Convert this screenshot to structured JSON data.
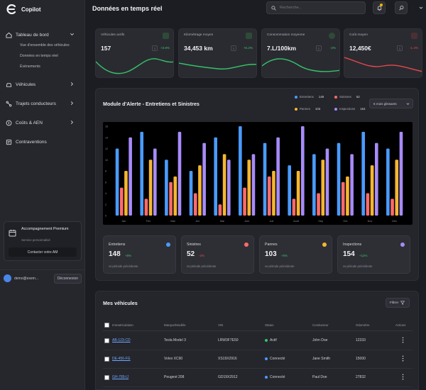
{
  "app": {
    "brand": "Copilot"
  },
  "header": {
    "title": "Données en temps réel",
    "search_placeholder": "Recherche..."
  },
  "sidebar": {
    "items": [
      {
        "label": "Tableau de bord",
        "icon": "home-icon"
      },
      {
        "label": "Véhicules",
        "icon": "car-icon"
      },
      {
        "label": "Trajets conducteurs",
        "icon": "route-icon"
      },
      {
        "label": "Coûts & AEN",
        "icon": "coin-icon"
      },
      {
        "label": "Contraventions",
        "icon": "ticket-icon"
      }
    ],
    "subitems": [
      "Vue d'ensemble des véhicules",
      "Données en temps réel",
      "Événements"
    ],
    "premium": {
      "title": "Accompagnement Premium",
      "subtitle": "Service personnalisé",
      "button": "Contacter votre AM"
    },
    "user": {
      "email": "demo@exem...",
      "logout": "Déconnexion"
    }
  },
  "kpis": [
    {
      "label": "Véhicules actifs",
      "value": "157",
      "trend": "+3.8%",
      "trend_color": "#35c46a",
      "accent": "#35c46a"
    },
    {
      "label": "Kilométrage moyen",
      "value": "34,453 km",
      "trend": "+5.2%",
      "trend_color": "#35c46a",
      "accent": "#35c46a"
    },
    {
      "label": "Consommation moyenne",
      "value": "7.L/100km",
      "trend": "-2%",
      "trend_color": "#35c46a",
      "accent": "#35c46a"
    },
    {
      "label": "Coût moyen",
      "value": "12,450€",
      "trend": "-1.4%",
      "trend_color": "#e5484d",
      "accent": "#e5484d"
    }
  ],
  "alert_module": {
    "title": "Module d'Alerte - Entretiens et Sinistres",
    "period": "6 mois glissants",
    "legend": [
      {
        "name": "Entretiens",
        "count": "148",
        "color": "#4a9bff"
      },
      {
        "name": "Sinistres",
        "count": "52",
        "color": "#ff6b6b"
      },
      {
        "name": "Pannes",
        "count": "103",
        "color": "#f5b730"
      },
      {
        "name": "Inspections",
        "count": "154",
        "color": "#a78bfa"
      }
    ],
    "stats": [
      {
        "label": "Entretiens",
        "value": "148",
        "trend": "+8%",
        "trend_color": "#35c46a",
        "sub": "vs période précédente",
        "color": "#4a9bff"
      },
      {
        "label": "Sinistres",
        "value": "52",
        "trend": "-3%",
        "trend_color": "#e5484d",
        "sub": "vs période précédente",
        "color": "#ff6b6b"
      },
      {
        "label": "Pannes",
        "value": "103",
        "trend": "+5%",
        "trend_color": "#35c46a",
        "sub": "vs période précédente",
        "color": "#f5b730"
      },
      {
        "label": "Inspections",
        "value": "154",
        "trend": "+12%",
        "trend_color": "#35c46a",
        "sub": "vs période précédente",
        "color": "#a78bfa"
      }
    ]
  },
  "chart_data": {
    "type": "bar",
    "categories": [
      "Jan",
      "Fév",
      "Mar",
      "Avr",
      "Mai",
      "Juin",
      "Juil",
      "Août",
      "Sep",
      "Oct",
      "Nov",
      "Déc"
    ],
    "ylim": [
      0,
      16
    ],
    "yticks": [
      "0",
      "2",
      "4",
      "6",
      "8",
      "10",
      "12",
      "14",
      "16"
    ],
    "series": [
      {
        "name": "Entretiens",
        "color": "#4a9bff",
        "values": [
          12,
          15,
          10,
          8,
          14,
          16,
          13,
          9,
          11,
          13,
          15,
          12
        ]
      },
      {
        "name": "Sinistres",
        "color": "#ff6b6b",
        "values": [
          5,
          3,
          6,
          4,
          2,
          5,
          7,
          3,
          4,
          6,
          4,
          3
        ]
      },
      {
        "name": "Pannes",
        "color": "#f5b730",
        "values": [
          8,
          10,
          7,
          9,
          11,
          10,
          8,
          8,
          10,
          7,
          9,
          10
        ]
      },
      {
        "name": "Inspections",
        "color": "#a78bfa",
        "values": [
          14,
          12,
          15,
          13,
          10,
          11,
          14,
          16,
          12,
          11,
          13,
          15
        ]
      }
    ]
  },
  "vehicles": {
    "title": "Mes véhicules",
    "filter": "Filtrer",
    "columns": [
      "Immatriculation",
      "Marque/Modèle",
      "VIN",
      "Status",
      "Conducteur",
      "Odomètre",
      "Actions"
    ],
    "rows": [
      {
        "plate": "AB-123-CD",
        "model": "Tesla Model 3",
        "vin": "LRW3F7E50",
        "status": "Actif",
        "status_color": "#35c46a",
        "driver": "John Doe",
        "odometer": "12333"
      },
      {
        "plate": "DE-456-FG",
        "model": "Volvo XC90",
        "vin": "XS19X2916",
        "status": "Connecté",
        "status_color": "#4a9bff",
        "driver": "Jane Smith",
        "odometer": "15000"
      },
      {
        "plate": "GH-789-IJ",
        "model": "Peugeot 208",
        "vin": "GD19X2912",
        "status": "Connecté",
        "status_color": "#4a9bff",
        "driver": "Paul Doe",
        "odometer": "27832"
      }
    ]
  }
}
